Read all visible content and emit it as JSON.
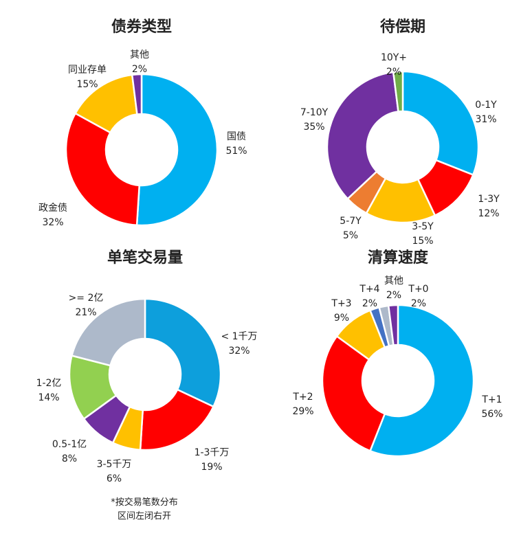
{
  "colors": {
    "blue": "#00b0f0",
    "dark_blue": "#0d9fdc",
    "red": "#ff0000",
    "yellow": "#ffc000",
    "purple": "#7030a0",
    "green": "#70ad47",
    "light_green": "#92d050",
    "orange": "#ed7d31",
    "gray": "#adb9ca",
    "steel_blue": "#4472c4"
  },
  "chart_data": [
    {
      "type": "pie",
      "donut": true,
      "title": "债券类型",
      "slices": [
        {
          "label": "国债",
          "value": 51,
          "pct": "51%",
          "color": "#00b0f0"
        },
        {
          "label": "政金债",
          "value": 32,
          "pct": "32%",
          "color": "#ff0000"
        },
        {
          "label": "同业存单",
          "value": 15,
          "pct": "15%",
          "color": "#ffc000"
        },
        {
          "label": "其他",
          "value": 2,
          "pct": "2%",
          "color": "#7030a0"
        }
      ]
    },
    {
      "type": "pie",
      "donut": true,
      "title": "待偿期",
      "slices": [
        {
          "label": "0-1Y",
          "value": 31,
          "pct": "31%",
          "color": "#00b0f0"
        },
        {
          "label": "1-3Y",
          "value": 12,
          "pct": "12%",
          "color": "#ff0000"
        },
        {
          "label": "3-5Y",
          "value": 15,
          "pct": "15%",
          "color": "#ffc000"
        },
        {
          "label": "5-7Y",
          "value": 5,
          "pct": "5%",
          "color": "#ed7d31"
        },
        {
          "label": "7-10Y",
          "value": 35,
          "pct": "35%",
          "color": "#7030a0"
        },
        {
          "label": "10Y+",
          "value": 2,
          "pct": "2%",
          "color": "#70ad47"
        }
      ]
    },
    {
      "type": "pie",
      "donut": true,
      "title": "单笔交易量",
      "slices": [
        {
          "label": "< 1千万",
          "value": 32,
          "pct": "32%",
          "color": "#0d9fdc"
        },
        {
          "label": "1-3千万",
          "value": 19,
          "pct": "19%",
          "color": "#ff0000"
        },
        {
          "label": "3-5千万",
          "value": 6,
          "pct": "6%",
          "color": "#ffc000"
        },
        {
          "label": "0.5-1亿",
          "value": 8,
          "pct": "8%",
          "color": "#7030a0"
        },
        {
          "label": "1-2亿",
          "value": 14,
          "pct": "14%",
          "color": "#92d050"
        },
        {
          "label": ">= 2亿",
          "value": 21,
          "pct": "21%",
          "color": "#adb9ca"
        }
      ]
    },
    {
      "type": "pie",
      "donut": true,
      "title": "清算速度",
      "slices": [
        {
          "label": "T+1",
          "value": 56,
          "pct": "56%",
          "color": "#00b0f0"
        },
        {
          "label": "T+2",
          "value": 29,
          "pct": "29%",
          "color": "#ff0000"
        },
        {
          "label": "T+3",
          "value": 9,
          "pct": "9%",
          "color": "#ffc000"
        },
        {
          "label": "T+4",
          "value": 2,
          "pct": "2%",
          "color": "#4472c4"
        },
        {
          "label": "其他",
          "value": 2,
          "pct": "2%",
          "color": "#adb9ca"
        },
        {
          "label": "T+0",
          "value": 2,
          "pct": "2%",
          "color": "#7030a0"
        }
      ]
    }
  ],
  "footnote": {
    "line1": "*按交易笔数分布",
    "line2": "区间左闭右开"
  }
}
